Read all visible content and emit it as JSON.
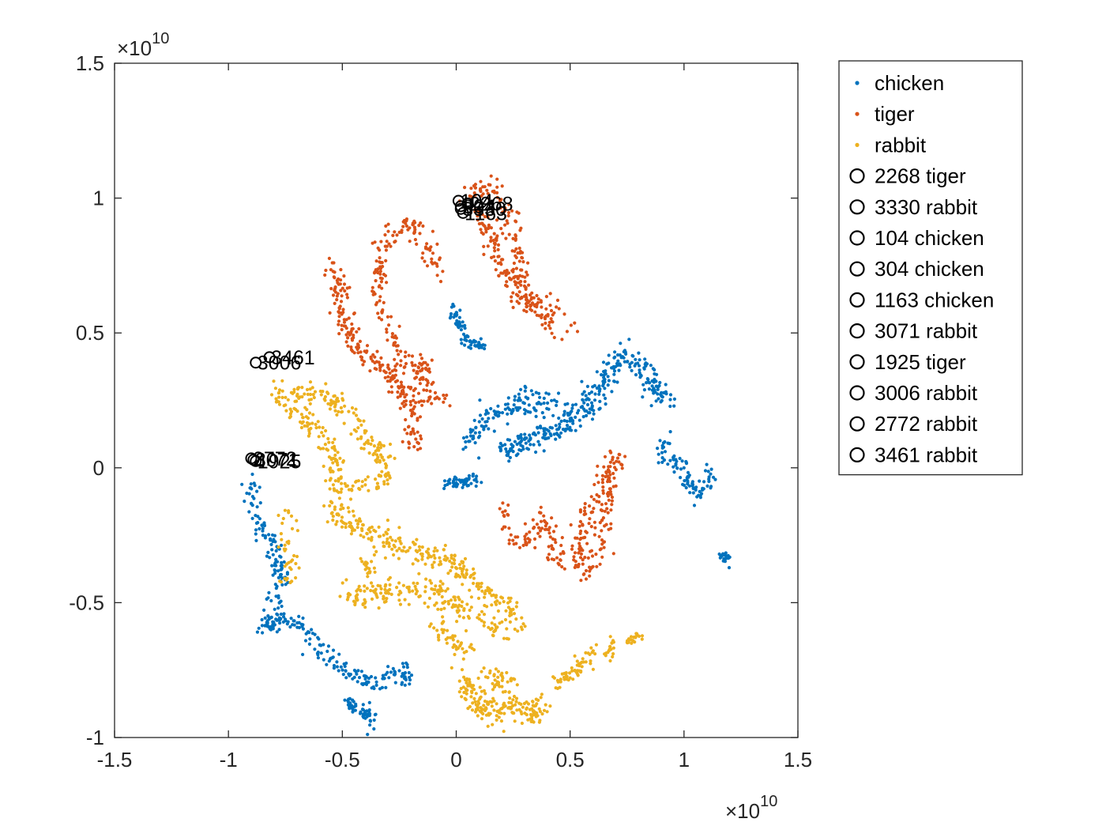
{
  "chart_data": {
    "type": "scatter",
    "title": "",
    "xlabel": "",
    "ylabel": "",
    "xlim": [
      -1.5,
      1.5
    ],
    "ylim": [
      -1,
      1.5
    ],
    "x_exponent_label": "×10",
    "x_exponent_power": "10",
    "y_exponent_label": "×10",
    "y_exponent_power": "10",
    "xticks": [
      {
        "value": -1.5,
        "label": "-1.5"
      },
      {
        "value": -1,
        "label": "-1"
      },
      {
        "value": -0.5,
        "label": "-0.5"
      },
      {
        "value": 0,
        "label": "0"
      },
      {
        "value": 0.5,
        "label": "0.5"
      },
      {
        "value": 1,
        "label": "1"
      },
      {
        "value": 1.5,
        "label": "1.5"
      }
    ],
    "yticks": [
      {
        "value": -1,
        "label": "-1"
      },
      {
        "value": -0.5,
        "label": "-0.5"
      },
      {
        "value": 0,
        "label": "0"
      },
      {
        "value": 0.5,
        "label": "0.5"
      },
      {
        "value": 1,
        "label": "1"
      },
      {
        "value": 1.5,
        "label": "1.5"
      }
    ],
    "legend_position": "outside-right",
    "series": [
      {
        "name": "chicken",
        "color": "#0072BD",
        "clusters": [
          {
            "path": [
              [
                -0.88,
                -0.05
              ],
              [
                -0.91,
                -0.12
              ],
              [
                -0.86,
                -0.22
              ],
              [
                -0.8,
                -0.3
              ],
              [
                -0.76,
                -0.42
              ],
              [
                -0.8,
                -0.52
              ],
              [
                -0.84,
                -0.6
              ],
              [
                -0.76,
                -0.55
              ],
              [
                -0.66,
                -0.6
              ],
              [
                -0.58,
                -0.7
              ],
              [
                -0.48,
                -0.75
              ],
              [
                -0.38,
                -0.8
              ],
              [
                -0.28,
                -0.78
              ],
              [
                -0.24,
                -0.74
              ],
              [
                -0.22,
                -0.8
              ]
            ],
            "n": 300,
            "spread": 0.018
          },
          {
            "path": [
              [
                -0.48,
                -0.86
              ],
              [
                -0.42,
                -0.9
              ],
              [
                -0.36,
                -0.94
              ]
            ],
            "n": 50,
            "spread": 0.015
          },
          {
            "path": [
              [
                -0.03,
                0.6
              ],
              [
                0.02,
                0.52
              ],
              [
                0.06,
                0.46
              ],
              [
                0.13,
                0.45
              ]
            ],
            "n": 70,
            "spread": 0.013
          },
          {
            "path": [
              [
                -0.05,
                -0.05
              ],
              [
                0.0,
                -0.06
              ],
              [
                0.1,
                -0.04
              ]
            ],
            "n": 50,
            "spread": 0.013
          },
          {
            "path": [
              [
                0.06,
                0.1
              ],
              [
                0.12,
                0.18
              ],
              [
                0.22,
                0.22
              ],
              [
                0.32,
                0.26
              ],
              [
                0.42,
                0.24
              ],
              [
                0.5,
                0.2
              ],
              [
                0.57,
                0.22
              ],
              [
                0.64,
                0.32
              ],
              [
                0.72,
                0.42
              ],
              [
                0.8,
                0.4
              ],
              [
                0.84,
                0.32
              ],
              [
                0.92,
                0.25
              ],
              [
                0.95,
                0.22
              ]
            ],
            "n": 320,
            "spread": 0.024
          },
          {
            "path": [
              [
                0.2,
                0.06
              ],
              [
                0.3,
                0.1
              ],
              [
                0.38,
                0.12
              ],
              [
                0.46,
                0.15
              ],
              [
                0.52,
                0.18
              ]
            ],
            "n": 120,
            "spread": 0.022
          },
          {
            "path": [
              [
                0.9,
                0.1
              ],
              [
                0.92,
                0.04
              ],
              [
                1.0,
                0.0
              ],
              [
                1.02,
                -0.06
              ],
              [
                1.07,
                -0.1
              ],
              [
                1.12,
                -0.02
              ]
            ],
            "n": 90,
            "spread": 0.02
          },
          {
            "path": [
              [
                1.16,
                -0.33
              ],
              [
                1.2,
                -0.34
              ]
            ],
            "n": 20,
            "spread": 0.01
          }
        ]
      },
      {
        "name": "tiger",
        "color": "#D95319",
        "clusters": [
          {
            "path": [
              [
                0.04,
                0.98
              ],
              [
                0.1,
                1.04
              ],
              [
                0.15,
                1.05
              ],
              [
                0.2,
                0.98
              ],
              [
                0.24,
                0.9
              ],
              [
                0.27,
                0.75
              ],
              [
                0.3,
                0.62
              ],
              [
                0.38,
                0.6
              ],
              [
                0.45,
                0.52
              ],
              [
                0.5,
                0.5
              ]
            ],
            "n": 170,
            "spread": 0.022
          },
          {
            "path": [
              [
                0.08,
                0.95
              ],
              [
                0.15,
                0.88
              ],
              [
                0.2,
                0.75
              ],
              [
                0.24,
                0.68
              ],
              [
                0.28,
                0.64
              ],
              [
                0.33,
                0.6
              ]
            ],
            "n": 100,
            "spread": 0.02
          },
          {
            "path": [
              [
                -0.3,
                0.88
              ],
              [
                -0.2,
                0.9
              ],
              [
                -0.12,
                0.8
              ],
              [
                -0.08,
                0.72
              ]
            ],
            "n": 60,
            "spread": 0.02
          },
          {
            "path": [
              [
                -0.3,
                0.86
              ],
              [
                -0.33,
                0.76
              ],
              [
                -0.35,
                0.62
              ],
              [
                -0.31,
                0.54
              ],
              [
                -0.24,
                0.42
              ],
              [
                -0.18,
                0.38
              ],
              [
                -0.12,
                0.37
              ],
              [
                -0.15,
                0.32
              ],
              [
                -0.22,
                0.26
              ],
              [
                -0.2,
                0.16
              ],
              [
                -0.18,
                0.08
              ],
              [
                -0.14,
                0.1
              ]
            ],
            "n": 170,
            "spread": 0.02
          },
          {
            "path": [
              [
                -0.55,
                0.76
              ],
              [
                -0.52,
                0.66
              ],
              [
                -0.5,
                0.56
              ],
              [
                -0.45,
                0.46
              ],
              [
                -0.4,
                0.42
              ],
              [
                -0.32,
                0.38
              ],
              [
                -0.26,
                0.34
              ]
            ],
            "n": 140,
            "spread": 0.02
          },
          {
            "path": [
              [
                -0.3,
                0.33
              ],
              [
                -0.25,
                0.3
              ],
              [
                -0.2,
                0.22
              ],
              [
                -0.1,
                0.27
              ],
              [
                -0.05,
                0.25
              ]
            ],
            "n": 60,
            "spread": 0.018
          },
          {
            "path": [
              [
                0.2,
                -0.16
              ],
              [
                0.24,
                -0.28
              ],
              [
                0.3,
                -0.3
              ],
              [
                0.34,
                -0.2
              ],
              [
                0.38,
                -0.18
              ],
              [
                0.42,
                -0.24
              ],
              [
                0.42,
                -0.32
              ],
              [
                0.48,
                -0.35
              ],
              [
                0.52,
                -0.38
              ],
              [
                0.55,
                -0.3
              ],
              [
                0.55,
                -0.2
              ],
              [
                0.6,
                -0.12
              ],
              [
                0.64,
                -0.05
              ],
              [
                0.7,
                0.05
              ],
              [
                0.68,
                -0.02
              ],
              [
                0.66,
                -0.15
              ],
              [
                0.64,
                -0.3
              ],
              [
                0.6,
                -0.38
              ],
              [
                0.58,
                -0.4
              ]
            ],
            "n": 260,
            "spread": 0.02
          }
        ]
      },
      {
        "name": "rabbit",
        "color": "#EDB120",
        "clusters": [
          {
            "path": [
              [
                -0.82,
                0.34
              ],
              [
                -0.8,
                0.28
              ],
              [
                -0.76,
                0.24
              ],
              [
                -0.7,
                0.2
              ],
              [
                -0.64,
                0.16
              ],
              [
                -0.58,
                0.12
              ],
              [
                -0.54,
                0.05
              ],
              [
                -0.52,
                -0.05
              ]
            ],
            "n": 110,
            "spread": 0.02
          },
          {
            "path": [
              [
                -0.72,
                0.28
              ],
              [
                -0.62,
                0.28
              ],
              [
                -0.54,
                0.24
              ],
              [
                -0.46,
                0.2
              ],
              [
                -0.42,
                0.12
              ],
              [
                -0.36,
                0.08
              ],
              [
                -0.32,
                0.02
              ],
              [
                -0.3,
                -0.05
              ],
              [
                -0.36,
                -0.05
              ],
              [
                -0.46,
                -0.06
              ],
              [
                -0.52,
                -0.1
              ]
            ],
            "n": 180,
            "spread": 0.022
          },
          {
            "path": [
              [
                -0.56,
                -0.15
              ],
              [
                -0.48,
                -0.2
              ],
              [
                -0.4,
                -0.24
              ],
              [
                -0.3,
                -0.28
              ],
              [
                -0.2,
                -0.3
              ],
              [
                -0.1,
                -0.34
              ],
              [
                0.0,
                -0.36
              ],
              [
                0.05,
                -0.4
              ],
              [
                0.1,
                -0.44
              ],
              [
                0.15,
                -0.48
              ],
              [
                0.2,
                -0.5
              ],
              [
                0.25,
                -0.55
              ],
              [
                0.28,
                -0.6
              ]
            ],
            "n": 260,
            "spread": 0.024
          },
          {
            "path": [
              [
                -0.5,
                -0.46
              ],
              [
                -0.4,
                -0.48
              ],
              [
                -0.3,
                -0.44
              ],
              [
                -0.2,
                -0.46
              ],
              [
                -0.1,
                -0.44
              ],
              [
                -0.05,
                -0.5
              ],
              [
                0.0,
                -0.52
              ],
              [
                0.08,
                -0.54
              ],
              [
                0.16,
                -0.6
              ],
              [
                0.22,
                -0.62
              ]
            ],
            "n": 180,
            "spread": 0.022
          },
          {
            "path": [
              [
                -0.08,
                -0.6
              ],
              [
                -0.02,
                -0.64
              ],
              [
                0.05,
                -0.68
              ]
            ],
            "n": 40,
            "spread": 0.02
          },
          {
            "path": [
              [
                -0.74,
                -0.15
              ],
              [
                -0.76,
                -0.25
              ],
              [
                -0.72,
                -0.35
              ],
              [
                -0.74,
                -0.45
              ]
            ],
            "n": 40,
            "spread": 0.022
          },
          {
            "path": [
              [
                -0.4,
                -0.35
              ],
              [
                -0.35,
                -0.4
              ]
            ],
            "n": 20,
            "spread": 0.02
          },
          {
            "path": [
              [
                0.02,
                -0.76
              ],
              [
                0.05,
                -0.84
              ],
              [
                0.1,
                -0.88
              ],
              [
                0.18,
                -0.9
              ],
              [
                0.26,
                -0.88
              ],
              [
                0.34,
                -0.92
              ],
              [
                0.38,
                -0.86
              ]
            ],
            "n": 180,
            "spread": 0.022
          },
          {
            "path": [
              [
                0.12,
                -0.76
              ],
              [
                0.2,
                -0.8
              ],
              [
                0.26,
                -0.82
              ]
            ],
            "n": 40,
            "spread": 0.02
          },
          {
            "path": [
              [
                0.44,
                -0.8
              ],
              [
                0.5,
                -0.76
              ],
              [
                0.56,
                -0.72
              ],
              [
                0.6,
                -0.66
              ]
            ],
            "n": 60,
            "spread": 0.017
          },
          {
            "path": [
              [
                0.66,
                -0.7
              ],
              [
                0.68,
                -0.64
              ]
            ],
            "n": 20,
            "spread": 0.012
          },
          {
            "path": [
              [
                0.76,
                -0.64
              ],
              [
                0.8,
                -0.62
              ]
            ],
            "n": 22,
            "spread": 0.01
          }
        ]
      }
    ],
    "highlighted": [
      {
        "id": "2268",
        "label": "2268 tiger",
        "x": 0.05,
        "y": 0.98
      },
      {
        "id": "3330",
        "label": "3330 rabbit",
        "x": 0.02,
        "y": 0.96
      },
      {
        "id": "104",
        "label": "104 chicken",
        "x": 0.01,
        "y": 0.99
      },
      {
        "id": "304",
        "label": "304 chicken",
        "x": 0.02,
        "y": 0.97
      },
      {
        "id": "1163",
        "label": "1163 chicken",
        "x": 0.03,
        "y": 0.945
      },
      {
        "id": "3071",
        "label": "3071 rabbit",
        "x": -0.89,
        "y": 0.03
      },
      {
        "id": "1925",
        "label": "1925 tiger",
        "x": -0.88,
        "y": 0.025
      },
      {
        "id": "3006",
        "label": "3006 rabbit",
        "x": -0.88,
        "y": 0.39
      },
      {
        "id": "2772",
        "label": "2772 rabbit",
        "x": -0.9,
        "y": 0.035
      },
      {
        "id": "3461",
        "label": "3461 rabbit",
        "x": -0.82,
        "y": 0.41
      }
    ]
  }
}
